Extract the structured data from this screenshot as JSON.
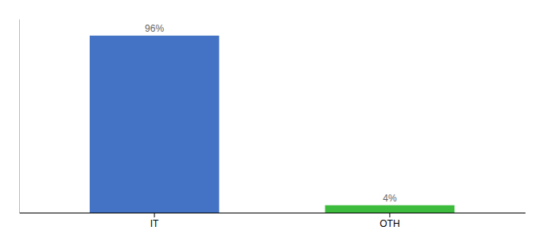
{
  "chart_data": {
    "type": "bar",
    "categories": [
      "IT",
      "OTH"
    ],
    "values": [
      96,
      4
    ],
    "value_labels": [
      "96%",
      "4%"
    ],
    "data_labels": true,
    "colors": [
      "#4472c4",
      "#3dbb3d"
    ],
    "ylim": [
      0,
      105
    ],
    "tick_labels": "x",
    "grid": false
  }
}
